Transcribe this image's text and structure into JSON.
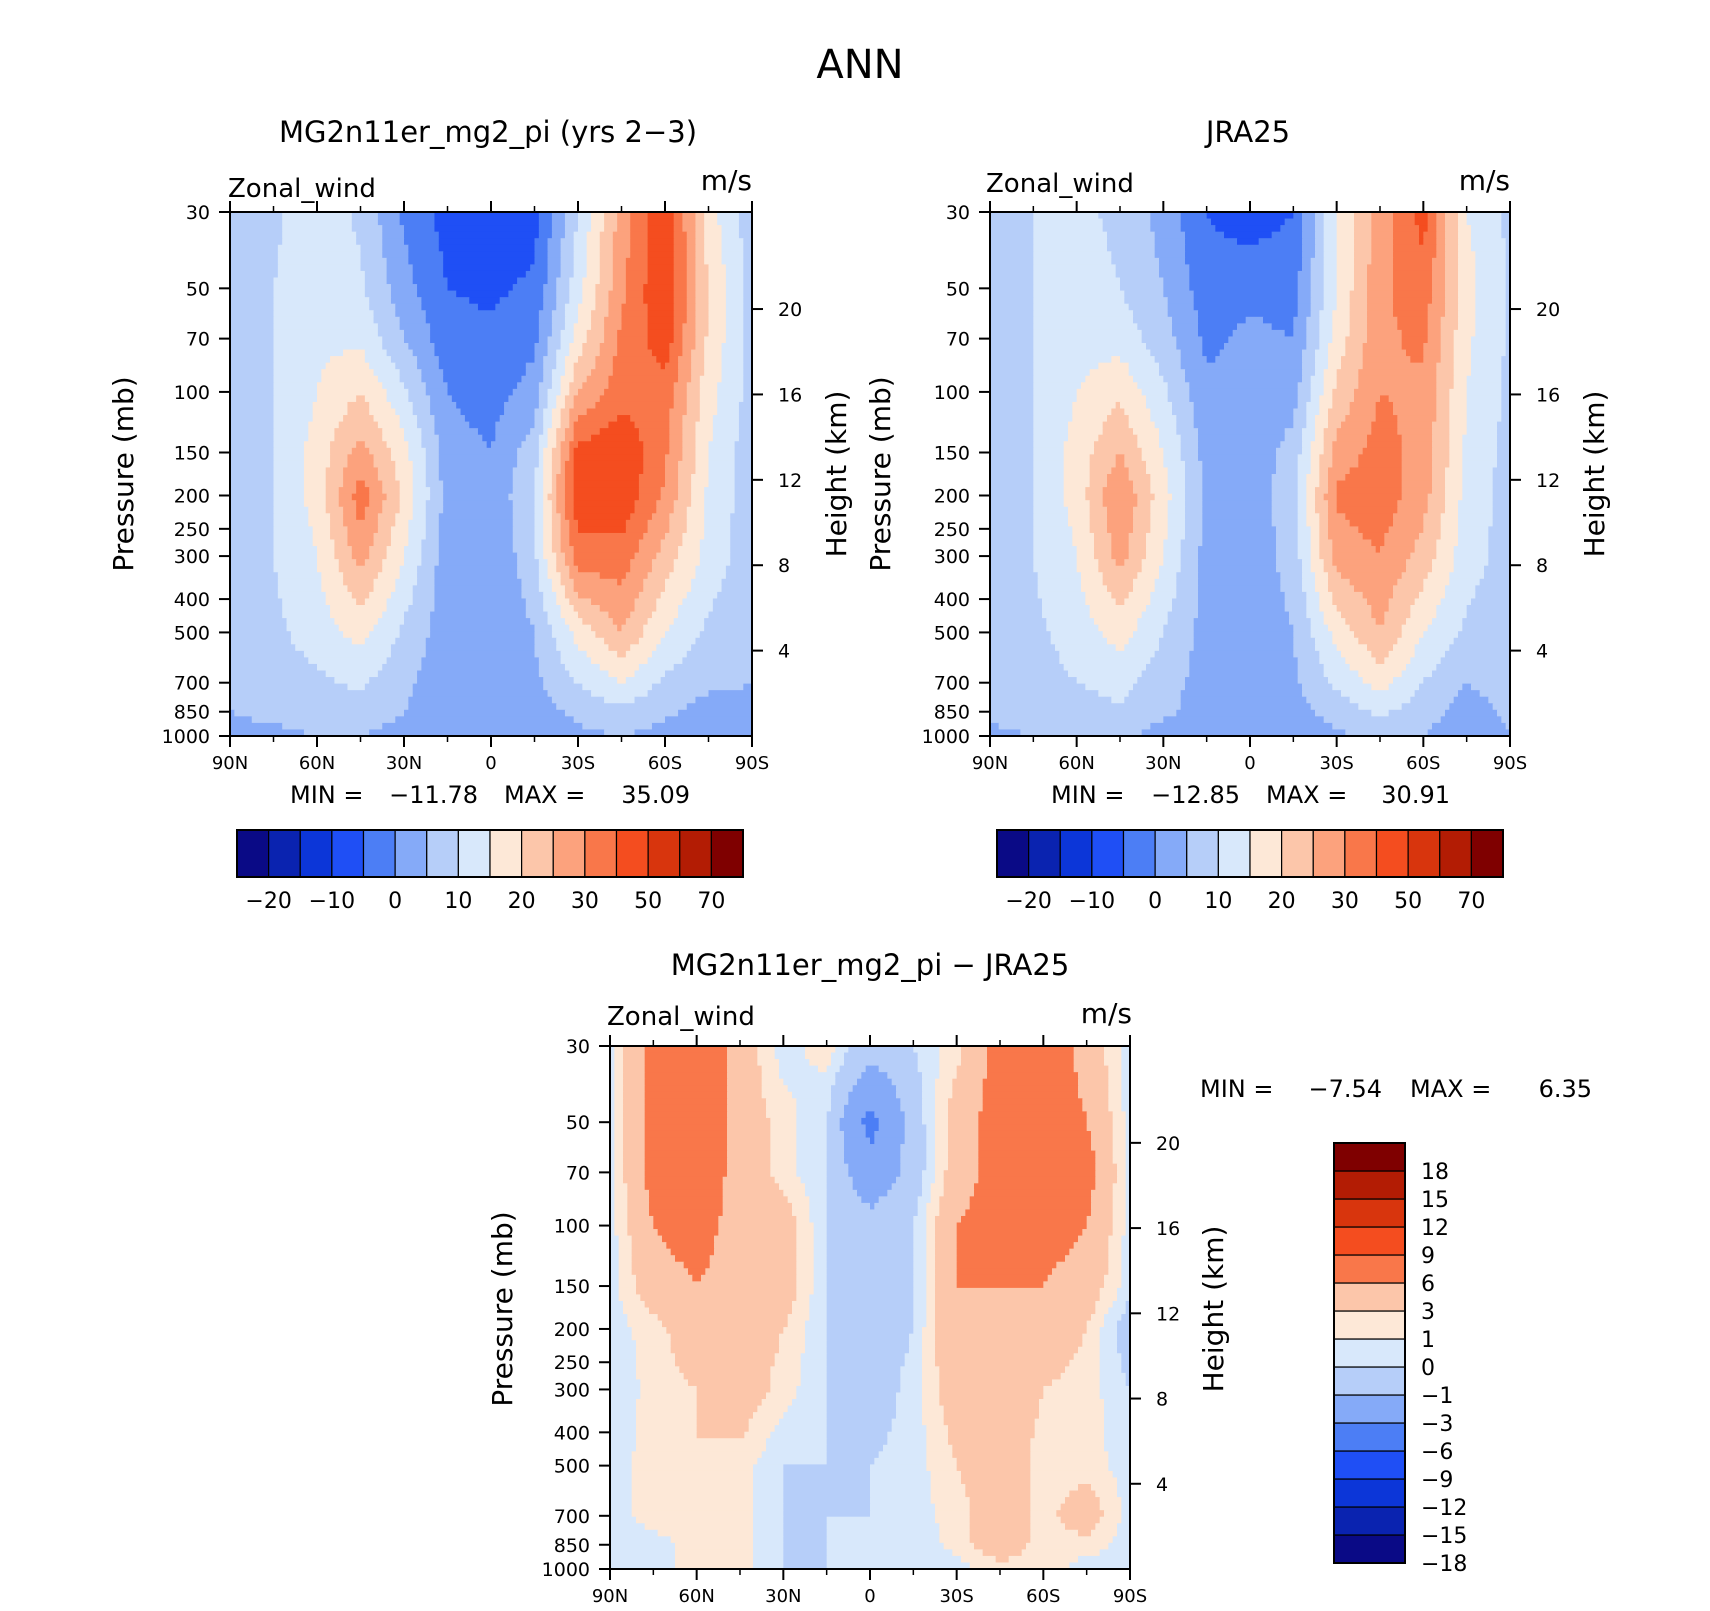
{
  "figure_title": "ANN",
  "chart_data": [
    {
      "type": "heatmap",
      "title": "MG2n11er_mg2_pi (yrs 2−3)",
      "left_label": "Zonal_wind",
      "right_label": "m/s",
      "xlabel": "",
      "ylabel": "Pressure (mb)",
      "ylabel_right": "Height (km)",
      "x_ticks": [
        "90N",
        "60N",
        "30N",
        "0",
        "30S",
        "60S",
        "90S"
      ],
      "y_ticks": [
        "30",
        "50",
        "70",
        "100",
        "150",
        "200",
        "250",
        "300",
        "400",
        "500",
        "700",
        "850",
        "1000"
      ],
      "height_ticks": [
        "4",
        "8",
        "12",
        "16",
        "20"
      ],
      "stats": {
        "min_label": "MIN =",
        "min": "−11.78",
        "max_label": "MAX =",
        "max": "35.09"
      },
      "cbar_labels": [
        "−20",
        "−10",
        "0",
        "10",
        "20",
        "30",
        "50",
        "70"
      ],
      "field": {
        "lats": [
          90,
          75,
          60,
          45,
          30,
          15,
          0,
          -15,
          -30,
          -45,
          -60,
          -75,
          -90
        ],
        "levels": [
          30,
          50,
          70,
          100,
          150,
          200,
          300,
          500,
          700,
          850,
          1000
        ],
        "values": [
          [
            0,
            4,
            8,
            4,
            -6,
            -12,
            -13,
            -12,
            5,
            22,
            35,
            12,
            2
          ],
          [
            1,
            5,
            8,
            6,
            -3,
            -10,
            -11,
            -9,
            8,
            24,
            35,
            15,
            3
          ],
          [
            1,
            5,
            9,
            9,
            0,
            -8,
            -9,
            -6,
            12,
            26,
            33,
            14,
            3
          ],
          [
            1,
            5,
            10,
            15,
            6,
            -5,
            -7,
            -3,
            20,
            28,
            28,
            12,
            3
          ],
          [
            1,
            5,
            12,
            22,
            12,
            -3,
            -5,
            3,
            32,
            34,
            26,
            10,
            2
          ],
          [
            1,
            5,
            12,
            28,
            14,
            -2,
            -4,
            5,
            34,
            34,
            24,
            9,
            2
          ],
          [
            1,
            5,
            10,
            22,
            10,
            -3,
            -5,
            4,
            28,
            28,
            18,
            8,
            2
          ],
          [
            1,
            4,
            7,
            12,
            4,
            -3,
            -5,
            0,
            12,
            20,
            10,
            4,
            1
          ],
          [
            1,
            3,
            4,
            6,
            1,
            -3,
            -4,
            -1,
            5,
            10,
            4,
            1,
            0
          ],
          [
            0,
            1,
            2,
            3,
            0,
            -3,
            -3,
            -2,
            1,
            4,
            1,
            -2,
            -1
          ],
          [
            -1,
            -1,
            0,
            0,
            -2,
            -3,
            -2,
            -3,
            -1,
            0,
            -2,
            -4,
            -1
          ]
        ]
      }
    },
    {
      "type": "heatmap",
      "title": "JRA25",
      "left_label": "Zonal_wind",
      "right_label": "m/s",
      "xlabel": "",
      "ylabel": "Pressure (mb)",
      "ylabel_right": "Height (km)",
      "x_ticks": [
        "90N",
        "60N",
        "30N",
        "0",
        "30S",
        "60S",
        "90S"
      ],
      "y_ticks": [
        "30",
        "50",
        "70",
        "100",
        "150",
        "200",
        "250",
        "300",
        "400",
        "500",
        "700",
        "850",
        "1000"
      ],
      "height_ticks": [
        "4",
        "8",
        "12",
        "16",
        "20"
      ],
      "stats": {
        "min_label": "MIN =",
        "min": "−12.85",
        "max_label": "MAX =",
        "max": "30.91"
      },
      "cbar_labels": [
        "−20",
        "−10",
        "0",
        "10",
        "20",
        "30",
        "50",
        "70"
      ],
      "field": {
        "lats": [
          90,
          75,
          60,
          45,
          30,
          15,
          0,
          -15,
          -30,
          -45,
          -60,
          -75,
          -90
        ],
        "levels": [
          30,
          50,
          70,
          100,
          150,
          200,
          300,
          500,
          700,
          850,
          1000
        ],
        "values": [
          [
            2,
            5,
            6,
            4,
            -2,
            -10,
            -13,
            -10,
            10,
            22,
            32,
            10,
            4
          ],
          [
            2,
            5,
            7,
            5,
            0,
            -8,
            -6,
            -7,
            10,
            24,
            28,
            12,
            4
          ],
          [
            2,
            5,
            8,
            8,
            2,
            -6,
            -4,
            -5,
            12,
            24,
            26,
            11,
            4
          ],
          [
            2,
            5,
            10,
            14,
            6,
            -4,
            -4,
            -2,
            16,
            25,
            24,
            10,
            4
          ],
          [
            2,
            5,
            12,
            20,
            10,
            -2,
            -3,
            2,
            22,
            27,
            23,
            9,
            3
          ],
          [
            2,
            5,
            12,
            25,
            12,
            -1,
            -3,
            3,
            26,
            28,
            22,
            8,
            3
          ],
          [
            2,
            5,
            10,
            22,
            10,
            -2,
            -3,
            2,
            22,
            25,
            18,
            7,
            3
          ],
          [
            2,
            4,
            7,
            12,
            5,
            -2,
            -3,
            0,
            12,
            20,
            10,
            4,
            2
          ],
          [
            1,
            3,
            5,
            7,
            2,
            -2,
            -3,
            -1,
            6,
            12,
            5,
            0,
            2
          ],
          [
            1,
            2,
            3,
            4,
            1,
            -2,
            -3,
            -2,
            2,
            6,
            2,
            -2,
            1
          ],
          [
            -1,
            0,
            0,
            1,
            -2,
            -2,
            -3,
            -3,
            -1,
            2,
            0,
            -3,
            0
          ]
        ]
      }
    },
    {
      "type": "heatmap",
      "title": "MG2n11er_mg2_pi − JRA25",
      "left_label": "Zonal_wind",
      "right_label": "m/s",
      "xlabel": "",
      "ylabel": "Pressure (mb)",
      "ylabel_right": "Height (km)",
      "x_ticks": [
        "90N",
        "60N",
        "30N",
        "0",
        "30S",
        "60S",
        "90S"
      ],
      "y_ticks": [
        "30",
        "50",
        "70",
        "100",
        "150",
        "200",
        "250",
        "300",
        "400",
        "500",
        "700",
        "850",
        "1000"
      ],
      "height_ticks": [
        "4",
        "8",
        "12",
        "16",
        "20"
      ],
      "stats": {
        "min_label": "MIN =",
        "min": "−7.54",
        "max_label": "MAX =",
        "max": "6.35"
      },
      "cbar_labels": [
        "18",
        "15",
        "12",
        "9",
        "6",
        "3",
        "1",
        "0",
        "−1",
        "−3",
        "−6",
        "−9",
        "−12",
        "−15",
        "−18"
      ],
      "field": {
        "lats": [
          90,
          75,
          60,
          45,
          30,
          15,
          0,
          -15,
          -30,
          -45,
          -60,
          -75,
          -90
        ],
        "levels": [
          30,
          50,
          70,
          100,
          150,
          200,
          300,
          500,
          700,
          850,
          1000
        ],
        "values": [
          [
            -0.5,
            4,
            5,
            2,
            -0.5,
            0.5,
            -2,
            -1,
            0.5,
            4,
            5,
            2,
            -0.5
          ],
          [
            -0.5,
            4,
            5,
            2,
            0.5,
            -1,
            -7,
            -2,
            2,
            4,
            5,
            3,
            -0.5
          ],
          [
            -0.5,
            4,
            5,
            2,
            0.5,
            -1,
            -5,
            -2,
            2,
            4,
            5,
            4,
            -0.5
          ],
          [
            -0.5,
            3,
            4,
            2,
            2,
            -1,
            -2,
            -1,
            3,
            4,
            4,
            3,
            -0.5
          ],
          [
            -0.5,
            2,
            3,
            2,
            2,
            -1,
            -2,
            -1,
            3,
            3,
            3,
            2,
            -0.5
          ],
          [
            -0.5,
            0.5,
            2,
            2,
            1,
            -1,
            -2,
            -1,
            3,
            2,
            2,
            1,
            -2
          ],
          [
            -1,
            0.5,
            1,
            2,
            0.5,
            -1,
            -2,
            -0.5,
            2,
            2,
            1,
            0.5,
            -1
          ],
          [
            -0.5,
            0.5,
            1,
            0.5,
            -1,
            -1,
            -1,
            -0.5,
            1,
            2,
            0.5,
            0.5,
            -0.5
          ],
          [
            -0.5,
            0.5,
            1,
            0.5,
            -1,
            -1,
            -1,
            -0.5,
            0.5,
            2,
            0.5,
            2,
            -0.5
          ],
          [
            -0.5,
            -0.5,
            0.5,
            0.5,
            -1,
            -1,
            -0.5,
            -1,
            0.5,
            2,
            0.5,
            0.5,
            -0.5
          ],
          [
            -0.5,
            -0.5,
            0.5,
            0.5,
            -1,
            -1,
            -0.5,
            -1,
            -0.5,
            0.5,
            0.5,
            -0.5,
            -0.5
          ]
        ]
      }
    }
  ],
  "colors": {
    "abs_palette": [
      "#0a0a86",
      "#0a23b0",
      "#0c36d8",
      "#1f4ff5",
      "#4c7ef5",
      "#85aaf8",
      "#b6cef9",
      "#d8e8fb",
      "#fde8d7",
      "#fcc6aa",
      "#fca27d",
      "#f9774a",
      "#f44d1f",
      "#d8350d",
      "#b31c04",
      "#7f0000"
    ],
    "abs_thresholds": [
      -25,
      -20,
      -15,
      -10,
      -5,
      0,
      5,
      10,
      15,
      20,
      25,
      30,
      40,
      50,
      60,
      70
    ],
    "diff_palette": [
      "#0a0a86",
      "#0a23b0",
      "#0c36d8",
      "#1f4ff5",
      "#4c7ef5",
      "#85aaf8",
      "#b6cef9",
      "#d8e8fb",
      "#fde8d7",
      "#fcc6aa",
      "#f9774a",
      "#f44d1f",
      "#d8350d",
      "#b31c04",
      "#7f0000"
    ],
    "diff_thresholds": [
      -18,
      -15,
      -12,
      -9,
      -6,
      -3,
      -1,
      0,
      1,
      3,
      6,
      9,
      12,
      15,
      18
    ]
  }
}
